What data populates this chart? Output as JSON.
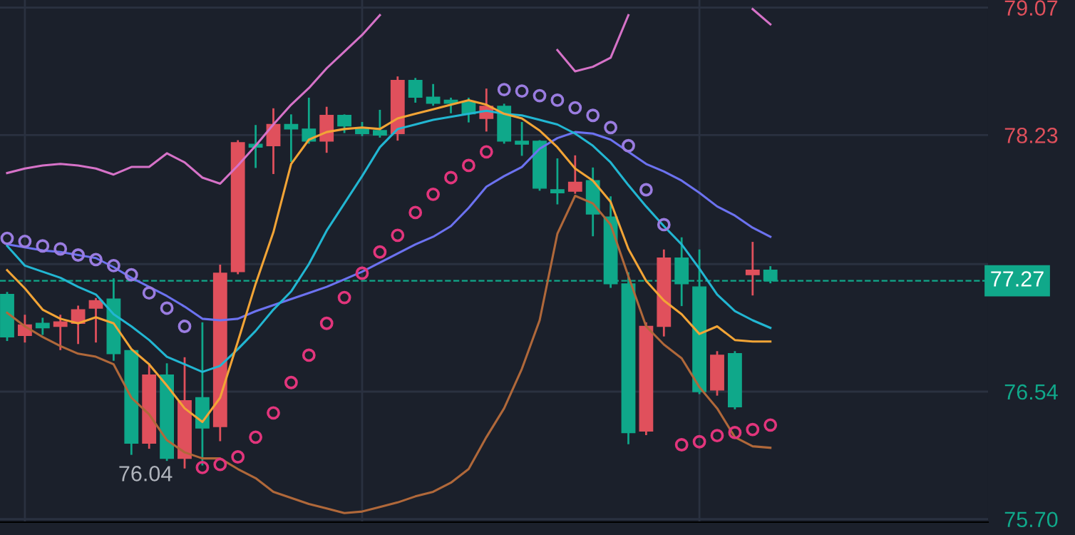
{
  "chart_data": {
    "type": "candlestick",
    "categories": [
      null,
      null,
      null,
      null,
      null,
      null,
      null,
      null,
      null,
      null,
      null,
      null,
      null,
      null,
      null,
      null,
      null,
      null,
      null,
      null,
      null,
      null,
      null,
      null,
      null,
      null,
      null,
      null,
      null,
      null,
      null,
      null,
      null,
      null,
      null,
      null,
      null,
      null,
      null,
      null,
      null,
      null,
      null,
      null
    ],
    "ohlc": [
      [
        77.18,
        77.19,
        76.88,
        76.9
      ],
      [
        76.91,
        77.04,
        76.87,
        76.98
      ],
      [
        76.99,
        77.02,
        76.92,
        76.96
      ],
      [
        76.97,
        77.04,
        76.82,
        77.0
      ],
      [
        76.99,
        77.1,
        76.86,
        77.08
      ],
      [
        77.09,
        77.15,
        76.87,
        77.14
      ],
      [
        77.15,
        77.28,
        76.75,
        76.79
      ],
      [
        76.81,
        76.81,
        76.13,
        76.2
      ],
      [
        76.2,
        76.72,
        76.17,
        76.65
      ],
      [
        76.65,
        76.72,
        76.09,
        76.1
      ],
      [
        76.1,
        76.76,
        76.04,
        76.48
      ],
      [
        76.5,
        76.99,
        76.06,
        76.3
      ],
      [
        76.31,
        77.37,
        76.22,
        77.32
      ],
      [
        77.33,
        78.19,
        77.32,
        78.18
      ],
      [
        78.17,
        78.29,
        78.02,
        78.15
      ],
      [
        78.16,
        78.4,
        77.98,
        78.3
      ],
      [
        78.3,
        78.36,
        78.06,
        78.27
      ],
      [
        78.27,
        78.47,
        78.18,
        78.19
      ],
      [
        78.19,
        78.41,
        78.12,
        78.36
      ],
      [
        78.36,
        78.36,
        78.25,
        78.29
      ],
      [
        78.28,
        78.31,
        78.23,
        78.24
      ],
      [
        78.26,
        78.39,
        78.22,
        78.23
      ],
      [
        78.24,
        78.61,
        78.2,
        78.59
      ],
      [
        78.59,
        78.6,
        78.45,
        78.48
      ],
      [
        78.48,
        78.56,
        78.43,
        78.44
      ],
      [
        78.46,
        78.47,
        78.38,
        78.44
      ],
      [
        78.45,
        78.47,
        78.32,
        78.37
      ],
      [
        78.34,
        78.53,
        78.26,
        78.42
      ],
      [
        78.42,
        78.43,
        78.18,
        78.19
      ],
      [
        78.19,
        78.31,
        78.1,
        78.17
      ],
      [
        78.19,
        78.19,
        77.87,
        77.88
      ],
      [
        77.87,
        78.07,
        77.78,
        77.85
      ],
      [
        77.86,
        78.09,
        77.85,
        77.92
      ],
      [
        77.93,
        78.01,
        77.57,
        77.71
      ],
      [
        77.69,
        77.82,
        77.23,
        77.25
      ],
      [
        77.25,
        77.32,
        76.2,
        76.27
      ],
      [
        76.28,
        76.99,
        76.26,
        76.97
      ],
      [
        76.97,
        77.47,
        76.91,
        77.42
      ],
      [
        77.42,
        77.55,
        77.11,
        77.25
      ],
      [
        77.23,
        77.47,
        76.53,
        76.54
      ],
      [
        76.55,
        76.8,
        76.52,
        76.78
      ],
      [
        76.79,
        76.8,
        76.43,
        76.44
      ],
      [
        77.31,
        77.52,
        77.18,
        77.34
      ],
      [
        77.34,
        77.36,
        77.26,
        77.27
      ]
    ],
    "colors": [
      "#0fa88a",
      "#e0505c",
      "#0fa88a",
      "#e0505c",
      "#e0505c",
      "#e0505c",
      "#0fa88a",
      "#0fa88a",
      "#e0505c",
      "#0fa88a",
      "#e0505c",
      "#0fa88a",
      "#e0505c",
      "#e0505c",
      "#0fa88a",
      "#e0505c",
      "#0fa88a",
      "#0fa88a",
      "#e0505c",
      "#0fa88a",
      "#0fa88a",
      "#0fa88a",
      "#e0505c",
      "#0fa88a",
      "#0fa88a",
      "#0fa88a",
      "#0fa88a",
      "#e0505c",
      "#0fa88a",
      "#0fa88a",
      "#0fa88a",
      "#0fa88a",
      "#e0505c",
      "#0fa88a",
      "#0fa88a",
      "#0fa88a",
      "#e0505c",
      "#e0505c",
      "#0fa88a",
      "#0fa88a",
      "#e0505c",
      "#0fa88a",
      "#e0505c",
      "#0fa88a"
    ],
    "series": [
      {
        "type": "line",
        "color": "#d672c8",
        "values": [
          77.98,
          78.01,
          78.03,
          78.04,
          78.03,
          78.01,
          77.97,
          78.02,
          78.02,
          78.11,
          78.05,
          77.95,
          77.91,
          78.03,
          78.16,
          78.3,
          78.43,
          78.54,
          78.67,
          78.78,
          78.89,
          79.02,
          null,
          null,
          null,
          null,
          null,
          null,
          null,
          null,
          null,
          78.79,
          78.65,
          78.68,
          78.74,
          79.02,
          null,
          null,
          null,
          null,
          null,
          null,
          79.06,
          78.96
        ]
      },
      {
        "type": "line",
        "color": "#b0683a",
        "values": [
          77.06,
          76.97,
          76.9,
          76.84,
          76.79,
          76.77,
          76.72,
          76.5,
          76.39,
          76.22,
          76.14,
          76.1,
          76.1,
          76.03,
          75.97,
          75.88,
          75.84,
          75.8,
          75.77,
          75.74,
          75.75,
          75.78,
          75.81,
          75.85,
          75.88,
          75.94,
          76.03,
          76.24,
          76.43,
          76.69,
          77.01,
          77.58,
          77.83,
          77.78,
          77.64,
          77.3,
          76.97,
          76.85,
          76.76,
          76.57,
          76.43,
          76.24,
          76.18,
          76.17
        ]
      },
      {
        "type": "line",
        "color": "#6c72f0",
        "values": [
          77.51,
          77.49,
          77.47,
          77.46,
          77.44,
          77.42,
          77.36,
          77.29,
          77.23,
          77.17,
          77.1,
          77.02,
          77.01,
          77.02,
          77.07,
          77.11,
          77.15,
          77.19,
          77.23,
          77.28,
          77.33,
          77.39,
          77.45,
          77.51,
          77.56,
          77.63,
          77.75,
          77.89,
          77.96,
          78.02,
          78.14,
          78.21,
          78.25,
          78.24,
          78.2,
          78.12,
          78.04,
          77.99,
          77.93,
          77.85,
          77.76,
          77.7,
          77.62,
          77.56
        ]
      },
      {
        "type": "line",
        "color": "#22b6d2",
        "values": [
          77.5,
          77.37,
          77.33,
          77.29,
          77.23,
          77.18,
          77.05,
          76.97,
          76.88,
          76.77,
          76.72,
          76.67,
          76.71,
          76.82,
          76.94,
          77.08,
          77.2,
          77.38,
          77.6,
          77.78,
          77.96,
          78.15,
          78.27,
          78.3,
          78.33,
          78.35,
          78.37,
          78.39,
          78.37,
          78.36,
          78.33,
          78.3,
          78.24,
          78.16,
          78.05,
          77.9,
          77.76,
          77.63,
          77.51,
          77.35,
          77.18,
          77.07,
          77.01,
          76.96
        ]
      },
      {
        "type": "line",
        "color": "#f2a436",
        "values": [
          77.34,
          77.22,
          77.08,
          77.02,
          76.99,
          77.03,
          76.99,
          76.82,
          76.72,
          76.58,
          76.43,
          76.34,
          76.5,
          76.87,
          77.25,
          77.59,
          78.04,
          78.2,
          78.25,
          78.27,
          78.28,
          78.27,
          78.34,
          78.37,
          78.4,
          78.43,
          78.46,
          78.43,
          78.37,
          78.34,
          78.26,
          78.15,
          78.01,
          77.93,
          77.79,
          77.48,
          77.27,
          77.14,
          77.05,
          76.92,
          76.97,
          76.88,
          76.87,
          76.87
        ]
      },
      {
        "type": "scatter",
        "marker": "circle",
        "color": "#9a7ce0",
        "values": [
          77.55,
          77.53,
          77.5,
          77.48,
          77.44,
          77.41,
          77.37,
          77.31,
          77.19,
          77.09,
          76.97,
          null,
          null,
          null,
          null,
          null,
          null,
          null,
          null,
          null,
          null,
          null,
          null,
          null,
          null,
          null,
          null,
          null,
          78.53,
          78.52,
          78.49,
          78.46,
          78.41,
          78.36,
          78.28,
          78.16,
          77.87,
          77.64,
          null,
          null,
          null,
          null,
          null,
          null
        ]
      },
      {
        "type": "scatter",
        "marker": "circle",
        "color": "#e2357c",
        "values": [
          null,
          null,
          null,
          null,
          null,
          null,
          null,
          null,
          null,
          null,
          null,
          76.04,
          76.06,
          76.11,
          76.24,
          76.4,
          76.6,
          76.78,
          76.99,
          77.16,
          77.32,
          77.46,
          77.57,
          77.72,
          77.84,
          77.95,
          78.03,
          78.12,
          null,
          null,
          null,
          null,
          null,
          null,
          null,
          null,
          null,
          null,
          76.19,
          76.21,
          76.25,
          76.27,
          76.29,
          76.32
        ]
      }
    ],
    "ylim": [
      75.68,
      79.12
    ],
    "yticks": [
      79.07,
      78.23,
      {
        "value": 77.38,
        "label": null
      },
      76.54,
      {
        "value": 75.7,
        "label": "75.70"
      }
    ],
    "grid": true,
    "tick_labels": "y",
    "ref_lines": [
      {
        "axis": "y",
        "value": 77.27,
        "label": "77.27",
        "color": "#10a88a",
        "line_style": "dashed"
      }
    ],
    "annotations": [
      "76.04"
    ]
  }
}
